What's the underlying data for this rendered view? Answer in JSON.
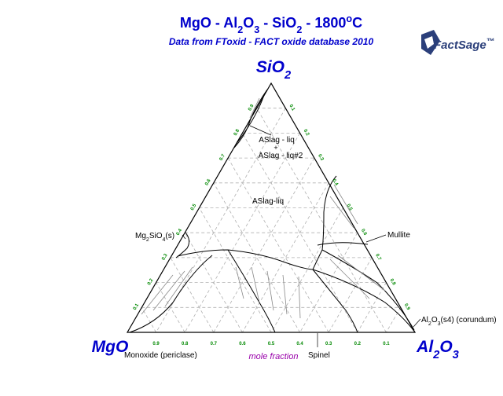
{
  "header": {
    "title": [
      "MgO - Al",
      "2",
      "O",
      "3",
      " - SiO",
      "2",
      " -  1800",
      "o",
      "C"
    ],
    "subtitle": "Data from FToxid - FACT oxide database 2010",
    "logo": "FactSage",
    "logo_mark": "™"
  },
  "diagram": {
    "vertices": {
      "top": [
        "SiO",
        "2"
      ],
      "left": "MgO",
      "right": [
        "Al",
        "2",
        "O",
        "3"
      ]
    },
    "axis_ticks": {
      "bottom": [
        0.9,
        0.8,
        0.7,
        0.6,
        0.5,
        0.4,
        0.3,
        0.2,
        0.1
      ],
      "left": [
        0.1,
        0.2,
        0.3,
        0.4,
        0.5,
        0.6,
        0.7,
        0.8,
        0.9
      ],
      "right": [
        0.1,
        0.2,
        0.3,
        0.4,
        0.5,
        0.6,
        0.7,
        0.8,
        0.9
      ]
    },
    "axis_label": "mole fraction",
    "regions": [
      "ASlag - liq",
      "ASlag - liq#2",
      "ASlag-liq",
      [
        "Mg",
        "2",
        "SiO",
        "4",
        "(s)"
      ],
      "Mullite",
      [
        "Al",
        "2",
        "O",
        "3",
        "(s4) (corundum)"
      ],
      "Monoxide (periclase)",
      "Spinel"
    ]
  }
}
